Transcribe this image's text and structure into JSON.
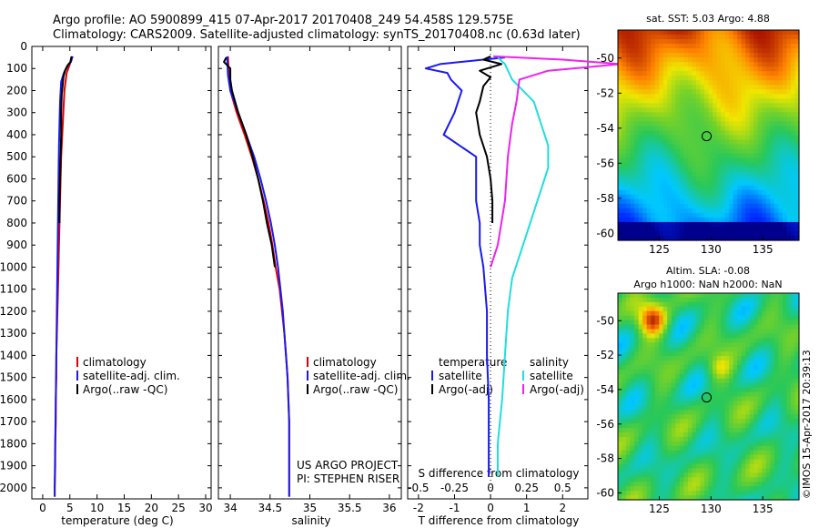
{
  "header": {
    "line1": "Argo profile: AO 5900899_415 07-Apr-2017 20170408_249 54.458S 129.575E",
    "line2": "Climatology: CARS2009. Satellite-adjusted climatology: synTS_20170408.nc (0.63d later)"
  },
  "credit": {
    "project": "US ARGO PROJECT",
    "pi": "PI: STEPHEN RISER",
    "imos": "©IMOS 15-Apr-2017 20:39:13"
  },
  "colors": {
    "climatology": "#dd0000",
    "satellite": "#1a1aee",
    "argo": "#000000",
    "argo_adj": "#ee22ee",
    "satellite_salinity": "#22dddd"
  },
  "chart_data": [
    {
      "id": "temperature",
      "type": "line",
      "xlabel": "temperature (deg C)",
      "ylabel": "",
      "xlim": [
        -2,
        31
      ],
      "ylim": [
        2050,
        0
      ],
      "xticks": [
        0,
        5,
        10,
        15,
        20,
        25,
        30
      ],
      "xtick_labels": [
        "0",
        "5",
        "10",
        "15",
        "20",
        "25",
        "30"
      ],
      "yticks": [
        0,
        100,
        200,
        300,
        400,
        500,
        600,
        700,
        800,
        900,
        1000,
        1100,
        1200,
        1300,
        1400,
        1500,
        1600,
        1700,
        1800,
        1900,
        2000
      ],
      "legend": [
        "climatology",
        "satellite-adj. clim.",
        "Argo(..raw -QC)"
      ],
      "series": [
        {
          "name": "climatology",
          "color": "#dd0000",
          "width": 2,
          "points": [
            [
              5.3,
              50
            ],
            [
              5.0,
              80
            ],
            [
              4.4,
              120
            ],
            [
              4.0,
              200
            ],
            [
              3.8,
              300
            ],
            [
              3.6,
              400
            ],
            [
              3.4,
              500
            ],
            [
              3.3,
              600
            ],
            [
              3.2,
              700
            ],
            [
              3.1,
              800
            ],
            [
              3.0,
              900
            ],
            [
              2.9,
              1000
            ],
            [
              2.8,
              1100
            ],
            [
              2.7,
              1200
            ],
            [
              2.6,
              1300
            ],
            [
              2.5,
              1400
            ],
            [
              2.5,
              1500
            ],
            [
              2.4,
              1600
            ],
            [
              2.4,
              1700
            ],
            [
              2.3,
              1800
            ],
            [
              2.3,
              1900
            ],
            [
              2.2,
              2000
            ],
            [
              2.2,
              2040
            ]
          ]
        },
        {
          "name": "satellite-adj. clim.",
          "color": "#1a1aee",
          "width": 2,
          "points": [
            [
              5.5,
              45
            ],
            [
              5.2,
              70
            ],
            [
              4.5,
              90
            ],
            [
              3.9,
              120
            ],
            [
              3.4,
              160
            ],
            [
              3.2,
              250
            ],
            [
              3.1,
              350
            ],
            [
              3.0,
              450
            ],
            [
              2.9,
              600
            ],
            [
              2.8,
              800
            ],
            [
              2.7,
              1000
            ],
            [
              2.6,
              1200
            ],
            [
              2.5,
              1400
            ],
            [
              2.4,
              1600
            ],
            [
              2.3,
              1800
            ],
            [
              2.2,
              2000
            ],
            [
              2.2,
              2040
            ]
          ]
        },
        {
          "name": "Argo(..raw -QC)",
          "color": "#000000",
          "width": 2,
          "points": [
            [
              5.3,
              45
            ],
            [
              5.1,
              70
            ],
            [
              4.6,
              85
            ],
            [
              4.1,
              110
            ],
            [
              3.8,
              140
            ],
            [
              3.7,
              170
            ],
            [
              3.5,
              220
            ],
            [
              3.4,
              300
            ],
            [
              3.4,
              400
            ],
            [
              3.3,
              500
            ],
            [
              3.2,
              600
            ],
            [
              3.1,
              700
            ],
            [
              3.1,
              800
            ]
          ]
        }
      ]
    },
    {
      "id": "salinity",
      "type": "line",
      "xlabel": "salinity",
      "ylabel": "",
      "xlim": [
        33.85,
        36.15
      ],
      "ylim": [
        2050,
        0
      ],
      "xticks": [
        34,
        34.5,
        35,
        35.5,
        36
      ],
      "xtick_labels": [
        "34",
        "34.5",
        "35",
        "35.5",
        "36"
      ],
      "legend": [
        "climatology",
        "satellite-adj. clim.",
        "Argo(..raw -QC)"
      ],
      "series": [
        {
          "name": "climatology",
          "color": "#dd0000",
          "width": 2,
          "points": [
            [
              33.97,
              45
            ],
            [
              33.98,
              120
            ],
            [
              34.0,
              200
            ],
            [
              34.08,
              300
            ],
            [
              34.18,
              400
            ],
            [
              34.27,
              500
            ],
            [
              34.35,
              600
            ],
            [
              34.42,
              700
            ],
            [
              34.48,
              800
            ],
            [
              34.53,
              900
            ],
            [
              34.57,
              1000
            ],
            [
              34.62,
              1100
            ],
            [
              34.65,
              1200
            ],
            [
              34.68,
              1300
            ],
            [
              34.7,
              1400
            ],
            [
              34.72,
              1500
            ],
            [
              34.73,
              1600
            ],
            [
              34.74,
              1700
            ],
            [
              34.74,
              1800
            ],
            [
              34.74,
              1900
            ],
            [
              34.74,
              2000
            ],
            [
              34.74,
              2040
            ]
          ]
        },
        {
          "name": "satellite-adj. clim.",
          "color": "#1a1aee",
          "width": 2,
          "points": [
            [
              33.96,
              45
            ],
            [
              33.97,
              130
            ],
            [
              34.0,
              200
            ],
            [
              34.1,
              300
            ],
            [
              34.2,
              400
            ],
            [
              34.3,
              500
            ],
            [
              34.38,
              600
            ],
            [
              34.45,
              700
            ],
            [
              34.51,
              800
            ],
            [
              34.56,
              900
            ],
            [
              34.6,
              1000
            ],
            [
              34.63,
              1100
            ],
            [
              34.66,
              1200
            ],
            [
              34.68,
              1300
            ],
            [
              34.7,
              1400
            ],
            [
              34.72,
              1500
            ],
            [
              34.73,
              1600
            ],
            [
              34.74,
              1700
            ],
            [
              34.74,
              1800
            ],
            [
              34.74,
              1900
            ],
            [
              34.74,
              2000
            ],
            [
              34.74,
              2040
            ]
          ]
        },
        {
          "name": "Argo(..raw -QC)",
          "color": "#000000",
          "width": 2,
          "points": [
            [
              33.95,
              50
            ],
            [
              33.92,
              70
            ],
            [
              33.96,
              85
            ],
            [
              34.0,
              100
            ],
            [
              34.0,
              150
            ],
            [
              34.02,
              200
            ],
            [
              34.1,
              300
            ],
            [
              34.2,
              400
            ],
            [
              34.28,
              500
            ],
            [
              34.35,
              600
            ],
            [
              34.41,
              700
            ],
            [
              34.46,
              800
            ],
            [
              34.52,
              900
            ],
            [
              34.56,
              1000
            ]
          ]
        }
      ]
    },
    {
      "id": "differences",
      "type": "line",
      "xlabel": "T difference from climatology",
      "top_label": "S difference from climatology",
      "xlim": [
        -2.3,
        2.7
      ],
      "ylim": [
        2050,
        0
      ],
      "xticks": [
        -2,
        -1,
        0,
        1,
        2
      ],
      "xtick_labels": [
        "-2",
        "-1",
        "0",
        "1",
        "2"
      ],
      "sticks": [
        -0.5,
        -0.25,
        0,
        0.25,
        0.5
      ],
      "stick_labels": [
        "-0.5",
        "-0.25",
        "0",
        "0.25",
        "0.5"
      ],
      "legend_temperature": {
        "title": "temperature",
        "items": [
          "satellite",
          "Argo(-adj)"
        ]
      },
      "legend_salinity": {
        "title": "salinity",
        "items": [
          "satellite",
          "Argo(-adj)"
        ]
      },
      "series": [
        {
          "name": "temperature satellite",
          "color": "#1a1aee",
          "width": 2,
          "points": [
            [
              0.4,
              50
            ],
            [
              -0.2,
              60
            ],
            [
              -1.4,
              80
            ],
            [
              -1.8,
              100
            ],
            [
              -1.2,
              120
            ],
            [
              -1.1,
              150
            ],
            [
              -0.8,
              200
            ],
            [
              -1.0,
              300
            ],
            [
              -1.3,
              400
            ],
            [
              -0.4,
              500
            ],
            [
              -0.4,
              600
            ],
            [
              -0.4,
              700
            ],
            [
              -0.3,
              800
            ],
            [
              -0.3,
              900
            ],
            [
              -0.2,
              1000
            ],
            [
              -0.1,
              1200
            ],
            [
              -0.1,
              1400
            ],
            [
              -0.05,
              1600
            ],
            [
              -0.05,
              1800
            ],
            [
              -0.05,
              1950
            ]
          ]
        },
        {
          "name": "temperature Argo(-adj)",
          "color": "#000000",
          "width": 2,
          "points": [
            [
              0.0,
              45
            ],
            [
              -0.2,
              60
            ],
            [
              0.3,
              80
            ],
            [
              -0.3,
              110
            ],
            [
              0.0,
              140
            ],
            [
              -0.2,
              180
            ],
            [
              -0.3,
              250
            ],
            [
              -0.4,
              300
            ],
            [
              -0.3,
              400
            ],
            [
              -0.1,
              500
            ],
            [
              0.0,
              600
            ],
            [
              0.05,
              700
            ],
            [
              0.05,
              800
            ]
          ]
        },
        {
          "name": "salinity satellite",
          "color": "#22dddd",
          "width": 2,
          "points": [
            [
              0.05,
              50
            ],
            [
              0.1,
              80
            ],
            [
              0.15,
              150
            ],
            [
              0.3,
              250
            ],
            [
              0.35,
              350
            ],
            [
              0.4,
              450
            ],
            [
              0.4,
              550
            ],
            [
              0.35,
              650
            ],
            [
              0.3,
              750
            ],
            [
              0.25,
              850
            ],
            [
              0.2,
              950
            ],
            [
              0.15,
              1050
            ],
            [
              0.12,
              1200
            ],
            [
              0.1,
              1400
            ],
            [
              0.08,
              1600
            ],
            [
              0.05,
              1800
            ],
            [
              0.05,
              1950
            ]
          ]
        },
        {
          "name": "salinity Argo(-adj)",
          "color": "#ee22ee",
          "width": 2,
          "points": [
            [
              0.02,
              45
            ],
            [
              0.5,
              60
            ],
            [
              0.9,
              80
            ],
            [
              0.4,
              110
            ],
            [
              0.2,
              150
            ],
            [
              0.18,
              250
            ],
            [
              0.15,
              350
            ],
            [
              0.12,
              500
            ],
            [
              0.1,
              700
            ],
            [
              0.05,
              900
            ],
            [
              0.0,
              1000
            ]
          ]
        }
      ]
    },
    {
      "id": "sst-map",
      "type": "heatmap",
      "title": "sat. SST: 5.03 Argo: 4.88",
      "xlim": [
        121,
        138.5
      ],
      "ylim": [
        -60.4,
        -48.4
      ],
      "xticks": [
        125,
        130,
        135
      ],
      "xtick_labels": [
        "125",
        "130",
        "135"
      ],
      "yticks": [
        -50,
        -52,
        -54,
        -56,
        -58,
        -60
      ],
      "ytick_labels": [
        "-50",
        "-52",
        "-54",
        "-56",
        "-58",
        "-60"
      ],
      "marker": {
        "lon": 129.575,
        "lat": -54.458
      }
    },
    {
      "id": "sla-map",
      "type": "heatmap",
      "title_line1": "Altim. SLA: -0.08",
      "title_line2": "Argo h1000: NaN h2000: NaN",
      "xlim": [
        121,
        138.5
      ],
      "ylim": [
        -60.4,
        -48.4
      ],
      "xticks": [
        125,
        130,
        135
      ],
      "xtick_labels": [
        "125",
        "130",
        "135"
      ],
      "yticks": [
        -50,
        -52,
        -54,
        -56,
        -58,
        -60
      ],
      "ytick_labels": [
        "-50",
        "-52",
        "-54",
        "-56",
        "-58",
        "-60"
      ],
      "marker": {
        "lon": 129.575,
        "lat": -54.458
      }
    }
  ]
}
